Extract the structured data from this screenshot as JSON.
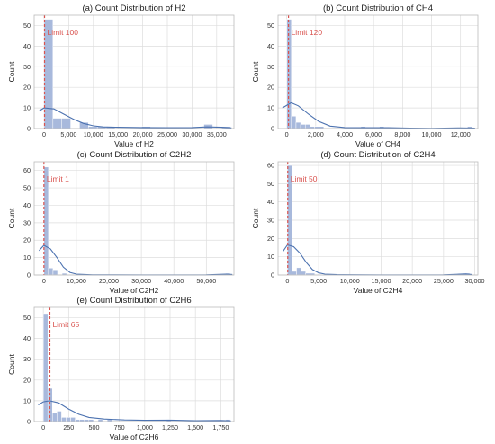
{
  "colors": {
    "bar": "#a8b9dc",
    "bar_edge": "#ffffff",
    "kde": "#4c72b0",
    "limit": "#d9534f",
    "grid": "#dddddd",
    "frame": "#bbbbbb"
  },
  "chart_data": [
    {
      "type": "histogram",
      "title": "(a) Count Distribution of H2",
      "xlabel": "Value of H2",
      "ylabel": "Count",
      "xlim": [
        -2000,
        38500
      ],
      "ylim": [
        0,
        55
      ],
      "xticks": [
        0,
        5000,
        10000,
        15000,
        20000,
        25000,
        30000,
        35000
      ],
      "xtick_labels": [
        "0",
        "5,000",
        "10,000",
        "15,000",
        "20,000",
        "25,000",
        "30,000",
        "35,000"
      ],
      "yticks": [
        0,
        10,
        20,
        30,
        40,
        50
      ],
      "bin_width": 1800,
      "bins": [
        [
          0,
          53
        ],
        [
          1800,
          5
        ],
        [
          3600,
          5
        ],
        [
          7200,
          3
        ],
        [
          9000,
          1
        ],
        [
          10800,
          1
        ],
        [
          12600,
          1
        ],
        [
          19800,
          1
        ],
        [
          32400,
          2
        ],
        [
          36000,
          1
        ]
      ],
      "kde": [
        [
          -1000,
          8.5
        ],
        [
          0,
          10
        ],
        [
          2000,
          9.5
        ],
        [
          4000,
          7
        ],
        [
          6000,
          4.5
        ],
        [
          8000,
          2.5
        ],
        [
          10000,
          1.3
        ],
        [
          12000,
          0.8
        ],
        [
          15000,
          0.6
        ],
        [
          20000,
          0.5
        ],
        [
          25000,
          0.4
        ],
        [
          30000,
          0.5
        ],
        [
          33000,
          0.8
        ],
        [
          36000,
          0.6
        ],
        [
          38000,
          0.3
        ]
      ],
      "limit_value": 100,
      "limit_label": "Limit 100"
    },
    {
      "type": "histogram",
      "title": "(b) Count Distribution of CH4",
      "xlabel": "Value of CH4",
      "ylabel": "Count",
      "xlim": [
        -600,
        13200
      ],
      "ylim": [
        0,
        55
      ],
      "xticks": [
        0,
        2000,
        4000,
        6000,
        8000,
        10000,
        12000
      ],
      "xtick_labels": [
        "0",
        "2,000",
        "4,000",
        "6,000",
        "8,000",
        "10,000",
        "12,000"
      ],
      "yticks": [
        0,
        10,
        20,
        30,
        40,
        50
      ],
      "bin_width": 320,
      "bins": [
        [
          0,
          53
        ],
        [
          320,
          6
        ],
        [
          640,
          3
        ],
        [
          960,
          2
        ],
        [
          1280,
          2
        ],
        [
          1600,
          1
        ],
        [
          1920,
          1
        ],
        [
          2240,
          1
        ],
        [
          5120,
          1
        ],
        [
          6400,
          1
        ],
        [
          12480,
          1
        ]
      ],
      "kde": [
        [
          -300,
          10
        ],
        [
          300,
          12.5
        ],
        [
          800,
          11
        ],
        [
          1500,
          7
        ],
        [
          2200,
          3.5
        ],
        [
          3000,
          1.2
        ],
        [
          4000,
          0.5
        ],
        [
          5500,
          0.4
        ],
        [
          7000,
          0.4
        ],
        [
          8500,
          0.2
        ],
        [
          10000,
          0.1
        ],
        [
          12000,
          0.3
        ],
        [
          13000,
          0.2
        ]
      ],
      "limit_value": 120,
      "limit_label": "Limit 120"
    },
    {
      "type": "histogram",
      "title": "(c) Count Distribution of C2H2",
      "xlabel": "Value of C2H2",
      "ylabel": "Count",
      "xlim": [
        -3000,
        58500
      ],
      "ylim": [
        0,
        65
      ],
      "xticks": [
        0,
        10000,
        20000,
        30000,
        40000,
        50000
      ],
      "xtick_labels": [
        "0",
        "10,000",
        "20,000",
        "30,000",
        "40,000",
        "50,000"
      ],
      "yticks": [
        0,
        10,
        20,
        30,
        40,
        50,
        60
      ],
      "bin_width": 1400,
      "bins": [
        [
          0,
          62
        ],
        [
          1400,
          4
        ],
        [
          2800,
          3
        ],
        [
          5600,
          1
        ],
        [
          56000,
          1
        ]
      ],
      "kde": [
        [
          -1500,
          14
        ],
        [
          0,
          17
        ],
        [
          2000,
          15
        ],
        [
          4000,
          10
        ],
        [
          6000,
          4.5
        ],
        [
          8000,
          1.5
        ],
        [
          10000,
          0.5
        ],
        [
          15000,
          0.1
        ],
        [
          30000,
          0.05
        ],
        [
          50000,
          0.1
        ],
        [
          56000,
          0.5
        ],
        [
          58000,
          0.3
        ]
      ],
      "limit_value": 1,
      "limit_label": "Limit 1"
    },
    {
      "type": "histogram",
      "title": "(d) Count Distribution of C2H4",
      "xlabel": "Value of C2H4",
      "ylabel": "Count",
      "xlim": [
        -1500,
        30500
      ],
      "ylim": [
        0,
        62
      ],
      "xticks": [
        0,
        5000,
        10000,
        15000,
        20000,
        25000,
        30000
      ],
      "xtick_labels": [
        "0",
        "5,000",
        "10,000",
        "15,000",
        "20,000",
        "25,000",
        "30,000"
      ],
      "yticks": [
        0,
        10,
        20,
        30,
        40,
        50,
        60
      ],
      "bin_width": 730,
      "bins": [
        [
          0,
          60
        ],
        [
          730,
          2
        ],
        [
          1460,
          4
        ],
        [
          2190,
          2
        ],
        [
          2920,
          1
        ],
        [
          3650,
          1
        ],
        [
          28470,
          1
        ]
      ],
      "kde": [
        [
          -700,
          13
        ],
        [
          0,
          16.5
        ],
        [
          1000,
          15.5
        ],
        [
          2000,
          12
        ],
        [
          3000,
          7
        ],
        [
          4000,
          3
        ],
        [
          5000,
          1.2
        ],
        [
          6000,
          0.5
        ],
        [
          8000,
          0.2
        ],
        [
          15000,
          0.05
        ],
        [
          25000,
          0.1
        ],
        [
          28500,
          0.6
        ],
        [
          29500,
          0.3
        ]
      ],
      "limit_value": 50,
      "limit_label": "Limit 50"
    },
    {
      "type": "histogram",
      "title": "(e) Count Distribution of C2H6",
      "xlabel": "Value of C2H6",
      "ylabel": "Count",
      "xlim": [
        -90,
        1880
      ],
      "ylim": [
        0,
        55
      ],
      "xticks": [
        0,
        250,
        500,
        750,
        1000,
        1250,
        1500,
        1750
      ],
      "xtick_labels": [
        "0",
        "250",
        "500",
        "750",
        "1,000",
        "1,250",
        "1,500",
        "1,750"
      ],
      "yticks": [
        0,
        10,
        20,
        30,
        40,
        50
      ],
      "bin_width": 45,
      "bins": [
        [
          0,
          52
        ],
        [
          45,
          16
        ],
        [
          90,
          4
        ],
        [
          135,
          5
        ],
        [
          180,
          2
        ],
        [
          225,
          2
        ],
        [
          270,
          2
        ],
        [
          315,
          1
        ],
        [
          360,
          1
        ],
        [
          405,
          1
        ],
        [
          450,
          1
        ],
        [
          540,
          1
        ],
        [
          630,
          1
        ],
        [
          1215,
          1
        ],
        [
          1800,
          1
        ]
      ],
      "kde": [
        [
          -50,
          8
        ],
        [
          0,
          9.5
        ],
        [
          60,
          10
        ],
        [
          150,
          9
        ],
        [
          250,
          6
        ],
        [
          350,
          3.5
        ],
        [
          450,
          2
        ],
        [
          600,
          1.2
        ],
        [
          800,
          0.8
        ],
        [
          1000,
          0.6
        ],
        [
          1250,
          0.7
        ],
        [
          1500,
          0.4
        ],
        [
          1750,
          0.5
        ],
        [
          1850,
          0.3
        ]
      ],
      "limit_value": 65,
      "limit_label": "Limit 65"
    }
  ]
}
